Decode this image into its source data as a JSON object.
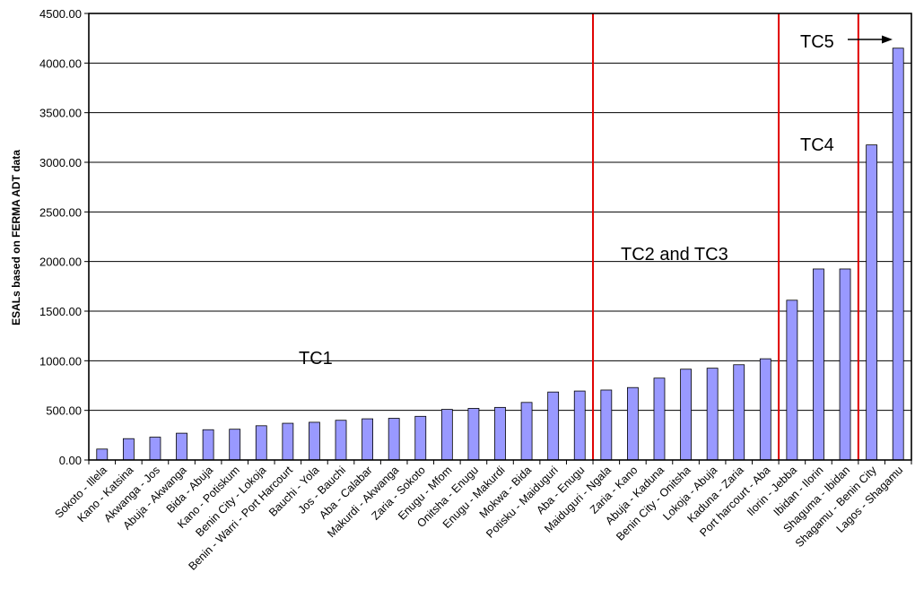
{
  "chart_data": {
    "type": "bar",
    "title": "",
    "xlabel": "",
    "ylabel": "ESALs based on FERMA ADT data",
    "ylim": [
      0,
      4500
    ],
    "ytick_step": 500,
    "ytick_labels": [
      "0.00",
      "500.00",
      "1000.00",
      "1500.00",
      "2000.00",
      "2500.00",
      "3000.00",
      "3500.00",
      "4000.00",
      "4500.00"
    ],
    "grid": true,
    "bar_color": "#9999ff",
    "divider_color": "#e00000",
    "categories": [
      "Sokoto - Illela",
      "Kano - Katsina",
      "Akwanga - Jos",
      "Abuja - Akwanga",
      "Bida - Abuja",
      "Kano - Potiskum",
      "Benin City - Lokoja",
      "Benin - Warri - Port Harcourt",
      "Bauchi - Yola",
      "Jos - Bauchi",
      "Aba - Calabar",
      "Makurdi - Akwanga",
      "Zaria - Sokoto",
      "Enugu - Mfom",
      "Onitsha - Enugu",
      "Enugu - Makurdi",
      "Mokwa - Bida",
      "Potisku - Maiduguri",
      "Aba - Enugu",
      "Maiduguri - Ngala",
      "Zaria - Kano",
      "Abuja - Kaduna",
      "Benin City - Onitsha",
      "Lokoja - Abuja",
      "Kaduna - Zaria",
      "Port harcourt - Aba",
      "Ilorin - Jebba",
      "Ibidan - Ilorin",
      "Shaguma - Ibidan",
      "Shagamu - Benin City",
      "Lagos - Shagamu"
    ],
    "values": [
      110,
      215,
      230,
      270,
      305,
      310,
      345,
      370,
      380,
      400,
      415,
      420,
      440,
      510,
      520,
      530,
      580,
      685,
      695,
      705,
      730,
      825,
      915,
      925,
      960,
      1020,
      1610,
      1925,
      1925,
      3175,
      4150
    ],
    "dividers_after_index": [
      18,
      25,
      28
    ],
    "annotations": [
      {
        "text": "TC1"
      },
      {
        "text": "TC2 and TC3"
      },
      {
        "text": "TC4"
      },
      {
        "text": "TC5"
      }
    ]
  }
}
